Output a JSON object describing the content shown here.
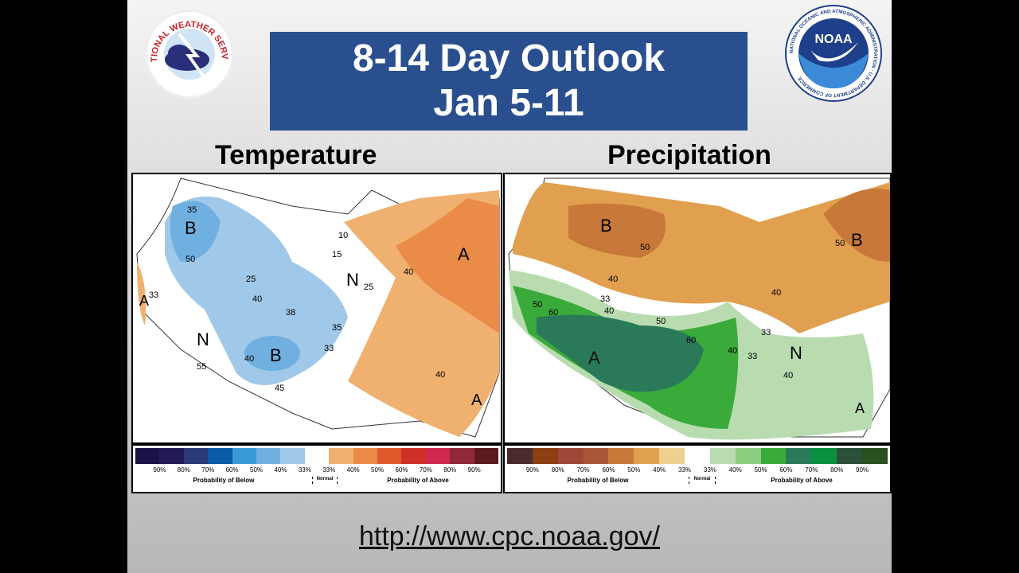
{
  "header": {
    "title_line1": "8-14 Day Outlook",
    "title_line2": "Jan 5-11",
    "nws_logo_text": "NATIONAL WEATHER SERVICE",
    "noaa_logo_text": "NOAA",
    "noaa_ring_text": "NATIONAL OCEANIC AND ATMOSPHERIC ADMINISTRATION · U.S. DEPARTMENT OF COMMERCE"
  },
  "temperature": {
    "heading": "Temperature",
    "map_labels": {
      "b1": "B",
      "b2": "B",
      "a1": "A",
      "a2": "A",
      "a3": "A",
      "n1": "N",
      "n2": "N"
    },
    "contours": [
      "35",
      "50",
      "25",
      "40",
      "38",
      "35",
      "33",
      "10",
      "15",
      "25",
      "40",
      "45",
      "55",
      "33",
      "40",
      "40"
    ],
    "legend": {
      "colors": [
        "#1a1446",
        "#241a5a",
        "#2c3a7a",
        "#0a5aa8",
        "#3a9ad8",
        "#6fb0e0",
        "#a0c8e8",
        "#ffffff",
        "#f0b070",
        "#ea8c48",
        "#e05a30",
        "#d0302a",
        "#d02850",
        "#902838",
        "#5a1a20"
      ],
      "ticks": [
        "90%",
        "80%",
        "70%",
        "60%",
        "50%",
        "40%",
        "33%",
        "33%",
        "40%",
        "50%",
        "60%",
        "70%",
        "80%",
        "90%"
      ],
      "below": "Probability of Below",
      "normal": "Normal",
      "above": "Probability of Above"
    }
  },
  "precipitation": {
    "heading": "Precipitation",
    "map_labels": {
      "b1": "B",
      "b2": "B",
      "a1": "A",
      "a2": "A",
      "n1": "N"
    },
    "contours": [
      "50",
      "50",
      "40",
      "33",
      "40",
      "50",
      "60",
      "50",
      "60",
      "40",
      "33",
      "33",
      "40",
      "40"
    ],
    "legend": {
      "colors": [
        "#4a2a2a",
        "#8a4010",
        "#a04838",
        "#a85838",
        "#c87838",
        "#e0a050",
        "#f0d090",
        "#ffffff",
        "#b8dcb0",
        "#8cce80",
        "#3aaa3a",
        "#2a7a5a",
        "#0a9040",
        "#2a5038",
        "#2a5020"
      ],
      "ticks": [
        "90%",
        "80%",
        "70%",
        "60%",
        "50%",
        "40%",
        "33%",
        "33%",
        "40%",
        "50%",
        "60%",
        "70%",
        "80%",
        "90%"
      ],
      "below": "Probability of Below",
      "normal": "Normal",
      "above": "Probability of Above"
    }
  },
  "footer": {
    "url": "http://www.cpc.noaa.gov/"
  }
}
